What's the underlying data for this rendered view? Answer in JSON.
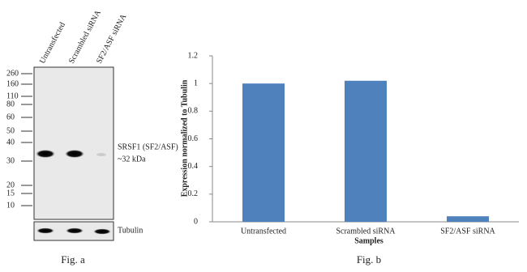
{
  "blot": {
    "lanes": [
      "Untransfected",
      "Scrambled siRNA",
      "SF2/ASF siRNA"
    ],
    "markers": [
      260,
      160,
      110,
      80,
      60,
      50,
      40,
      30,
      20,
      15,
      10
    ],
    "protein_label": "SRSF1 (SF2/ASF)",
    "size_label": "~32 kDa",
    "loading_label": "Tubulin",
    "caption": "Fig. a"
  },
  "chart_data": {
    "type": "bar",
    "categories": [
      "Untransfected",
      "Scrambled siRNA",
      "SF2/ASF siRNA"
    ],
    "values": [
      1.0,
      1.02,
      0.04
    ],
    "color": "#4f81bd",
    "ylim": [
      0,
      1.2
    ],
    "yticks": [
      0,
      0.2,
      0.4,
      0.6,
      0.8,
      1,
      1.2
    ],
    "y_label": "Expression normalized to Tubulin",
    "x_label": "Samples",
    "caption": "Fig. b"
  }
}
